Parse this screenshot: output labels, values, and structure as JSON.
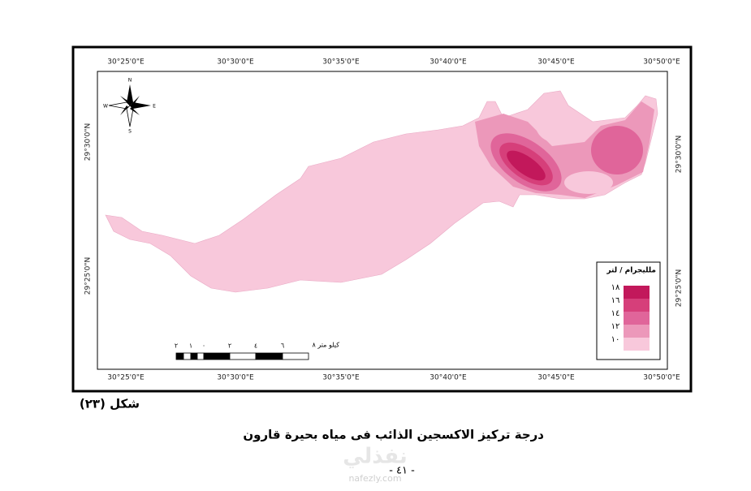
{
  "map": {
    "top_longitudes": [
      "30°25'0\"E",
      "30°30'0\"E",
      "30°35'0\"E",
      "30°40'0\"E",
      "30°45'0\"E",
      "30°50'0\"E"
    ],
    "bottom_longitudes": [
      "30°25'0\"E",
      "30°30'0\"E",
      "30°35'0\"E",
      "30°40'0\"E",
      "30°45'0\"E",
      "30°50'0\"E"
    ],
    "left_latitudes": [
      "29°30'0\"N",
      "29°25'0\"N"
    ],
    "right_latitudes": [
      "29°30'0\"N",
      "29°25'0\"N"
    ],
    "compass": {
      "n": "N",
      "s": "S",
      "e": "E",
      "w": "W"
    },
    "legend": {
      "title": "ملليجرام / لتر",
      "items": [
        {
          "label": "١٨",
          "color": "#c2185b"
        },
        {
          "label": "١٦",
          "color": "#d63f7a"
        },
        {
          "label": "١٤",
          "color": "#e0659a"
        },
        {
          "label": "١٢",
          "color": "#ec98ba"
        },
        {
          "label": "١٠",
          "color": "#f8c8db"
        }
      ]
    },
    "scale_bar": {
      "unit": "كيلو متر ٨",
      "labels": [
        "٦",
        "٤",
        "٢",
        "٠",
        "١",
        "٢"
      ]
    }
  },
  "document": {
    "figure_label": "شكل (٢٣)",
    "caption": "درجة تركيز الاكسجين الذائب فى مياه بحيرة قارون",
    "page_number": "- ٤١ -",
    "watermark": "نفذلي",
    "watermark_url": "nafezly.com"
  }
}
